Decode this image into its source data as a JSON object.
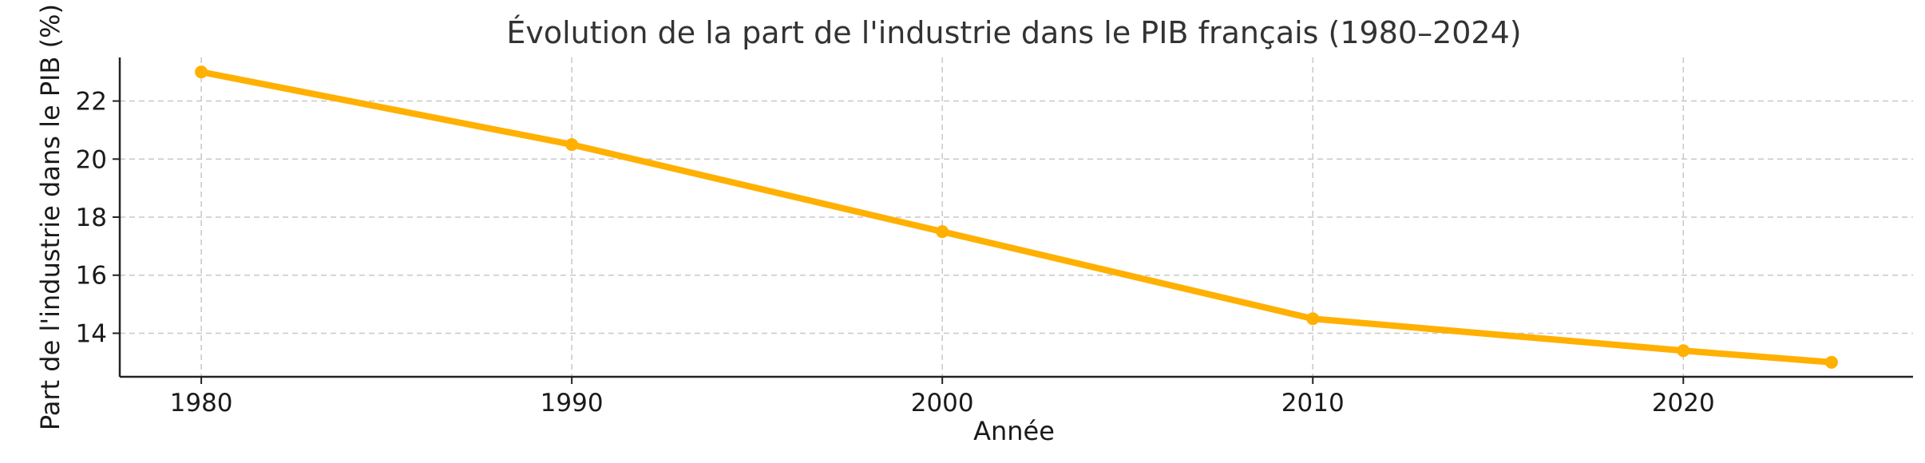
{
  "chart_data": {
    "type": "line",
    "title": "Évolution de la part de l'industrie dans le PIB français (1980–2024)",
    "xlabel": "Année",
    "ylabel": "Part de l'industrie dans le PIB (%)",
    "x": [
      1980,
      1990,
      2000,
      2010,
      2020,
      2024
    ],
    "series": [
      {
        "values": [
          23.0,
          20.5,
          17.5,
          14.5,
          13.4,
          13.0
        ],
        "color": "#FFB000"
      }
    ],
    "xticks": [
      1980,
      1990,
      2000,
      2010,
      2020
    ],
    "xtick_labels": [
      "1980",
      "1990",
      "2000",
      "2010",
      "2020"
    ],
    "yticks": [
      14,
      16,
      18,
      20,
      22
    ],
    "ytick_labels": [
      "14",
      "16",
      "18",
      "20",
      "22"
    ],
    "xlim": [
      1977.8,
      2026.2
    ],
    "ylim": [
      12.5,
      23.5
    ],
    "grid": true,
    "legend": "none"
  }
}
